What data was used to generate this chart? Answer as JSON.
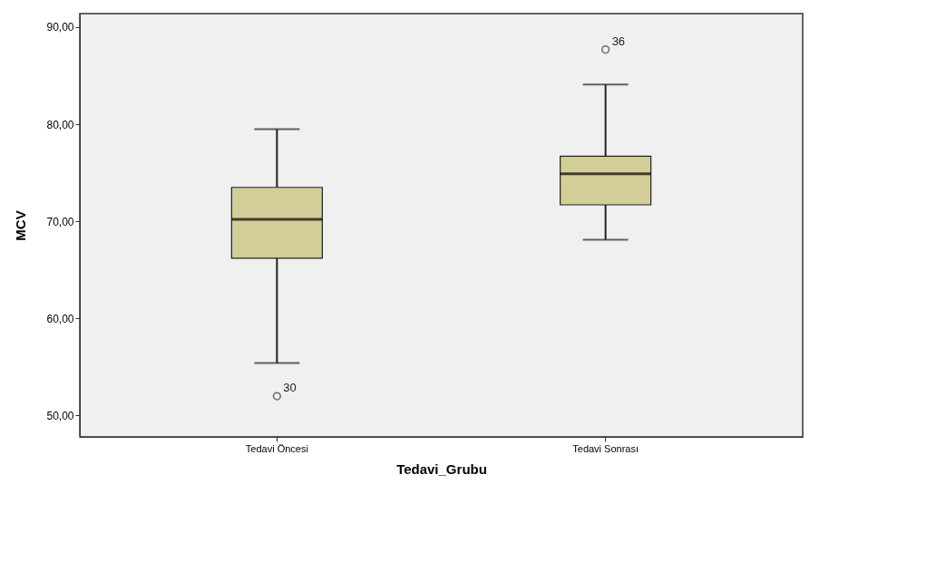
{
  "chart_data": {
    "type": "box",
    "xlabel": "Tedavi_Grubu",
    "ylabel": "MCV",
    "categories": [
      "Tedavi Öncesi",
      "Tedavi Sonrası"
    ],
    "series": [
      {
        "color": "#d3cd98",
        "boxes": [
          {
            "low": 55.4,
            "q1": 66.2,
            "median": 70.2,
            "q3": 73.5,
            "high": 79.5,
            "outliers": [
              52.0
            ]
          },
          {
            "low": 68.1,
            "q1": 71.7,
            "median": 74.9,
            "q3": 76.7,
            "high": 84.1,
            "outliers": [
              87.7
            ]
          }
        ]
      }
    ],
    "ylim": [
      47.8,
      91.4
    ],
    "yticks": [
      {
        "value": 50,
        "label": "50,00"
      },
      {
        "value": 60,
        "label": "60,00"
      },
      {
        "value": 70,
        "label": "70,00"
      },
      {
        "value": 80,
        "label": "80,00"
      },
      {
        "value": 90,
        "label": "90,00"
      }
    ],
    "annotations": [
      "30",
      "36"
    ],
    "grid": false
  }
}
